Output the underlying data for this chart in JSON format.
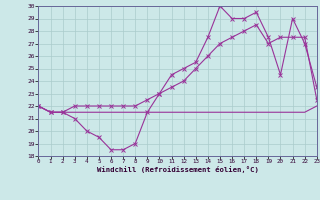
{
  "xlabel": "Windchill (Refroidissement éolien,°C)",
  "background_color": "#cce8e8",
  "grid_color": "#aacccc",
  "line_color": "#993399",
  "xmin": 0,
  "xmax": 23,
  "ymin": 18,
  "ymax": 30,
  "yticks": [
    18,
    19,
    20,
    21,
    22,
    23,
    24,
    25,
    26,
    27,
    28,
    29,
    30
  ],
  "xticks": [
    0,
    1,
    2,
    3,
    4,
    5,
    6,
    7,
    8,
    9,
    10,
    11,
    12,
    13,
    14,
    15,
    16,
    17,
    18,
    19,
    20,
    21,
    22,
    23
  ],
  "series": [
    {
      "x": [
        0,
        1,
        2,
        3,
        4,
        5,
        6,
        7,
        8,
        9,
        10,
        11,
        12,
        13,
        14,
        15,
        16,
        17,
        18,
        19,
        20,
        21,
        22,
        23
      ],
      "y": [
        22,
        21.5,
        21.5,
        21.5,
        21.5,
        21.5,
        21.5,
        21.5,
        21.5,
        21.5,
        21.5,
        21.5,
        21.5,
        21.5,
        21.5,
        21.5,
        21.5,
        21.5,
        21.5,
        21.5,
        21.5,
        21.5,
        21.5,
        22
      ],
      "marker": false
    },
    {
      "x": [
        0,
        1,
        2,
        3,
        4,
        5,
        6,
        7,
        8,
        9,
        10,
        11,
        12,
        13,
        14,
        15,
        16,
        17,
        18,
        19,
        20,
        21,
        22,
        23
      ],
      "y": [
        22,
        21.5,
        21.5,
        22,
        22,
        22,
        22,
        22,
        22,
        22.5,
        23,
        23.5,
        24,
        25,
        26,
        27,
        27.5,
        28,
        28.5,
        27,
        27.5,
        27.5,
        27.5,
        22.5
      ],
      "marker": true
    },
    {
      "x": [
        0,
        1,
        2,
        3,
        4,
        5,
        6,
        7,
        8,
        9,
        10,
        11,
        12,
        13,
        14,
        15,
        16,
        17,
        18,
        19,
        20,
        21,
        22,
        23
      ],
      "y": [
        22,
        21.5,
        21.5,
        21,
        20,
        19.5,
        18.5,
        18.5,
        19,
        21.5,
        23,
        24.5,
        25,
        25.5,
        27.5,
        30,
        29,
        29,
        29.5,
        27.5,
        24.5,
        29,
        27,
        23.5
      ],
      "marker": true
    }
  ]
}
